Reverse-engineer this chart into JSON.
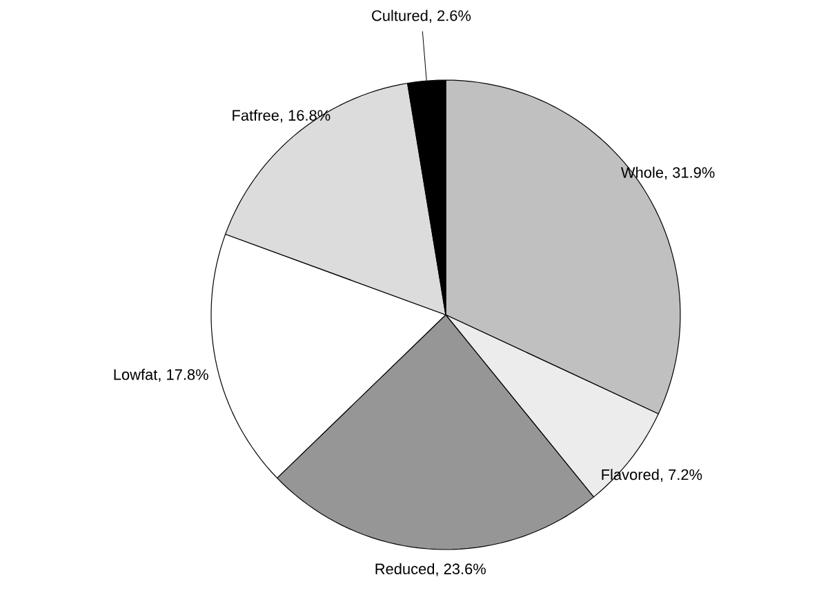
{
  "chart_data": {
    "type": "pie",
    "categories": [
      "Whole",
      "Flavored",
      "Reduced",
      "Lowfat",
      "Fatfree",
      "Cultured"
    ],
    "values": [
      31.9,
      7.2,
      23.6,
      17.8,
      16.8,
      2.6
    ],
    "value_labels": [
      ", 31.9%",
      ", 7.2%",
      ", 23.6%",
      ", 17.8%",
      ", 16.8%",
      ", 2.6%"
    ],
    "colors": [
      "#c0c0c0",
      "#ececec",
      "#969696",
      "#ffffff",
      "#dcdcdc",
      "#000000"
    ]
  }
}
